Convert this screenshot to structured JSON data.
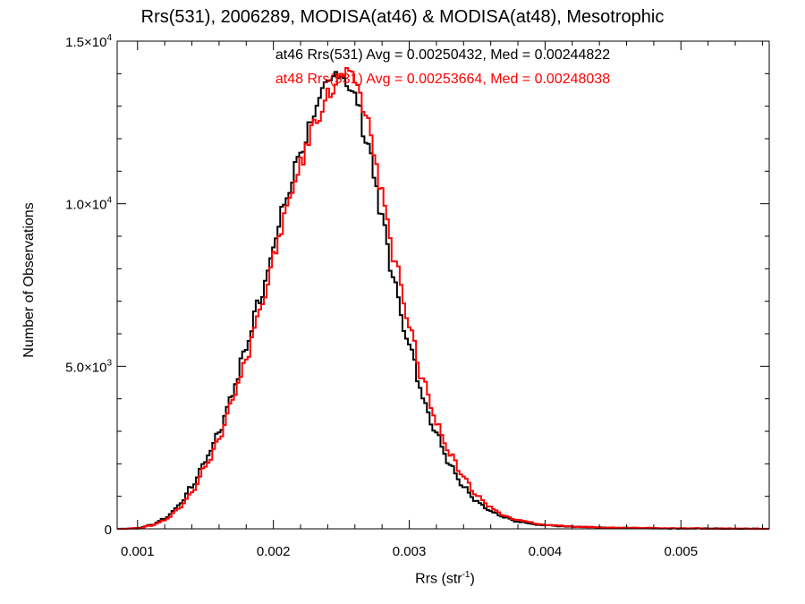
{
  "chart_data": {
    "type": "histogram",
    "title": "Rrs(531), 2006289, MODISA(at46) & MODISA(at48), Mesotrophic",
    "xlabel_base": "Rrs (str",
    "xlabel_sup": "-1",
    "xlabel_end": ")",
    "ylabel": "Number of Observations",
    "xlim": [
      0.00085,
      0.00565
    ],
    "ylim": [
      0,
      15000
    ],
    "x_ticks": [
      {
        "value": 0.001,
        "label": "0.001"
      },
      {
        "value": 0.002,
        "label": "0.002"
      },
      {
        "value": 0.003,
        "label": "0.003"
      },
      {
        "value": 0.004,
        "label": "0.004"
      },
      {
        "value": 0.005,
        "label": "0.005"
      }
    ],
    "y_ticks": [
      {
        "value": 0,
        "label": "0",
        "sup": ""
      },
      {
        "value": 5000,
        "label": "5.0×10",
        "sup": "3"
      },
      {
        "value": 10000,
        "label": "1.0×10",
        "sup": "4"
      },
      {
        "value": 15000,
        "label": "1.5×10",
        "sup": "4"
      }
    ],
    "annotations": [
      {
        "text": "at46 Rrs(531) Avg = 0.00250432, Med = 0.00244822",
        "color": "#000000"
      },
      {
        "text": "at48 Rrs(531) Avg = 0.00253664, Med = 0.00248038",
        "color": "#ff0000"
      }
    ],
    "series": [
      {
        "key": "at46",
        "color": "#000000",
        "curve": [
          [
            0.00085,
            0
          ],
          [
            0.001,
            20
          ],
          [
            0.0011,
            120
          ],
          [
            0.0012,
            320
          ],
          [
            0.0013,
            700
          ],
          [
            0.0014,
            1300
          ],
          [
            0.0015,
            2100
          ],
          [
            0.0016,
            3000
          ],
          [
            0.0017,
            4200
          ],
          [
            0.0018,
            5600
          ],
          [
            0.0019,
            7100
          ],
          [
            0.002,
            8700
          ],
          [
            0.0021,
            10200
          ],
          [
            0.0022,
            11600
          ],
          [
            0.0023,
            12800
          ],
          [
            0.0024,
            13600
          ],
          [
            0.00248,
            14100
          ],
          [
            0.0025,
            14000
          ],
          [
            0.0026,
            13300
          ],
          [
            0.0027,
            11800
          ],
          [
            0.0028,
            9500
          ],
          [
            0.0029,
            7400
          ],
          [
            0.003,
            5600
          ],
          [
            0.0031,
            4100
          ],
          [
            0.0032,
            2900
          ],
          [
            0.0033,
            2000
          ],
          [
            0.0034,
            1300
          ],
          [
            0.0035,
            850
          ],
          [
            0.0036,
            550
          ],
          [
            0.0037,
            350
          ],
          [
            0.0038,
            220
          ],
          [
            0.004,
            110
          ],
          [
            0.0042,
            60
          ],
          [
            0.0045,
            30
          ],
          [
            0.005,
            12
          ],
          [
            0.0055,
            4
          ],
          [
            0.00565,
            3
          ]
        ]
      },
      {
        "key": "at48",
        "color": "#ff0000",
        "curve": [
          [
            0.00085,
            0
          ],
          [
            0.001,
            15
          ],
          [
            0.0011,
            100
          ],
          [
            0.0012,
            270
          ],
          [
            0.0013,
            600
          ],
          [
            0.0014,
            1150
          ],
          [
            0.0015,
            1900
          ],
          [
            0.0016,
            2750
          ],
          [
            0.0017,
            3900
          ],
          [
            0.0018,
            5250
          ],
          [
            0.0019,
            6700
          ],
          [
            0.002,
            8300
          ],
          [
            0.0021,
            9800
          ],
          [
            0.0022,
            11200
          ],
          [
            0.0023,
            12450
          ],
          [
            0.0024,
            13350
          ],
          [
            0.00252,
            13950
          ],
          [
            0.0026,
            13800
          ],
          [
            0.0027,
            12500
          ],
          [
            0.0028,
            10300
          ],
          [
            0.0029,
            8100
          ],
          [
            0.003,
            6200
          ],
          [
            0.0031,
            4600
          ],
          [
            0.0032,
            3300
          ],
          [
            0.0033,
            2300
          ],
          [
            0.0034,
            1550
          ],
          [
            0.0035,
            1020
          ],
          [
            0.0036,
            660
          ],
          [
            0.0037,
            420
          ],
          [
            0.0038,
            270
          ],
          [
            0.004,
            130
          ],
          [
            0.0042,
            70
          ],
          [
            0.0045,
            35
          ],
          [
            0.005,
            14
          ],
          [
            0.0055,
            5
          ],
          [
            0.00565,
            3
          ]
        ]
      }
    ]
  }
}
